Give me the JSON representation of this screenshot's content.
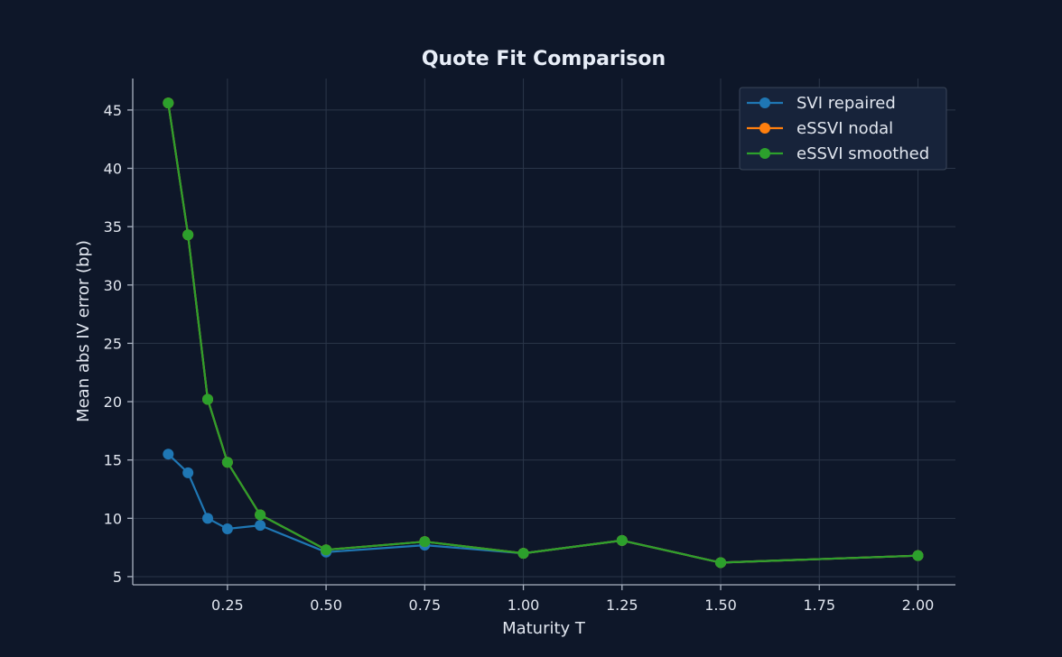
{
  "chart_data": {
    "type": "line",
    "title": "Quote Fit Comparison",
    "xlabel": "Maturity T",
    "ylabel": "Mean abs IV error (bp)",
    "xlim": [
      0.01,
      2.095
    ],
    "ylim": [
      4.3,
      47.7
    ],
    "xticks": [
      0.25,
      0.5,
      0.75,
      1.0,
      1.25,
      1.5,
      1.75,
      2.0
    ],
    "xtick_labels": [
      "0.25",
      "0.50",
      "0.75",
      "1.00",
      "1.25",
      "1.50",
      "1.75",
      "2.00"
    ],
    "yticks": [
      5,
      10,
      15,
      20,
      25,
      30,
      35,
      40,
      45
    ],
    "ytick_labels": [
      "5",
      "10",
      "15",
      "20",
      "25",
      "30",
      "35",
      "40",
      "45"
    ],
    "grid": true,
    "legend_position": "top-right",
    "x": [
      0.1,
      0.15,
      0.2,
      0.25,
      0.333,
      0.5,
      0.75,
      1.0,
      1.25,
      1.5,
      2.0
    ],
    "series": [
      {
        "name": "SVI repaired",
        "color": "#1f77b4",
        "values": [
          15.5,
          13.9,
          10.0,
          9.1,
          9.4,
          7.1,
          7.7,
          7.0,
          8.1,
          6.2,
          6.8
        ]
      },
      {
        "name": "eSSVI nodal",
        "color": "#ff7f0e",
        "values": [
          45.6,
          34.3,
          20.2,
          14.8,
          10.3,
          7.3,
          8.0,
          7.0,
          8.1,
          6.2,
          6.8
        ]
      },
      {
        "name": "eSSVI smoothed",
        "color": "#2ca02c",
        "values": [
          45.6,
          34.3,
          20.2,
          14.8,
          10.3,
          7.3,
          8.0,
          7.0,
          8.1,
          6.2,
          6.8
        ]
      }
    ],
    "background": "#0e1729",
    "legend_background": "#17233a",
    "legend_border": "#3a4659"
  }
}
